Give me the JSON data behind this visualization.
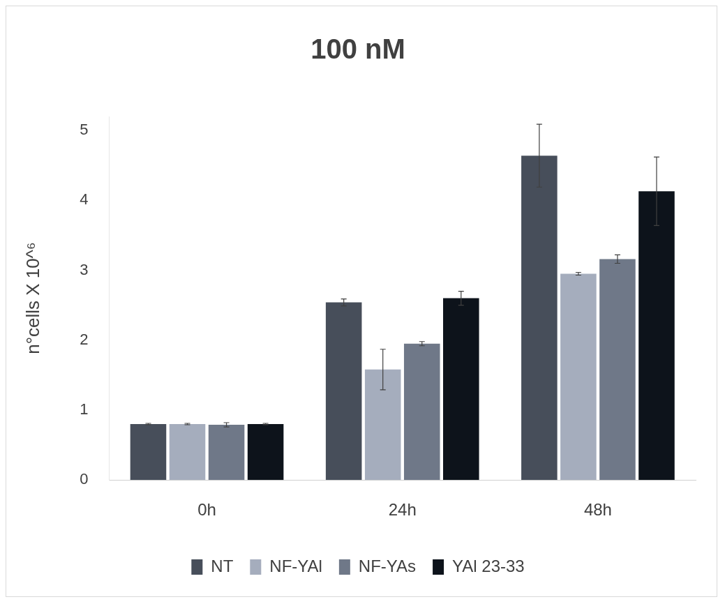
{
  "chart_data": {
    "type": "bar",
    "title": "100 nM",
    "ylabel": "n°cells X 10^⁶",
    "categories": [
      "0h",
      "24h",
      "48h"
    ],
    "ylim": [
      0,
      5.2
    ],
    "yticks": [
      0,
      1,
      2,
      3,
      4,
      5
    ],
    "grid": false,
    "legend": "bottom",
    "series": [
      {
        "name": "NT",
        "color": "#474e5a",
        "values": [
          0.8,
          2.54,
          4.64
        ],
        "errors": [
          0.01,
          0.05,
          0.45
        ]
      },
      {
        "name": "NF-YAl",
        "color": "#a5adbd",
        "values": [
          0.8,
          1.58,
          2.95
        ],
        "errors": [
          0.01,
          0.29,
          0.02
        ]
      },
      {
        "name": "NF-YAs",
        "color": "#6f7888",
        "values": [
          0.79,
          1.95,
          3.16
        ],
        "errors": [
          0.03,
          0.03,
          0.06
        ]
      },
      {
        "name": "YAl 23-33",
        "color": "#0d131b",
        "values": [
          0.8,
          2.6,
          4.13
        ],
        "errors": [
          0.01,
          0.1,
          0.49
        ]
      }
    ]
  }
}
